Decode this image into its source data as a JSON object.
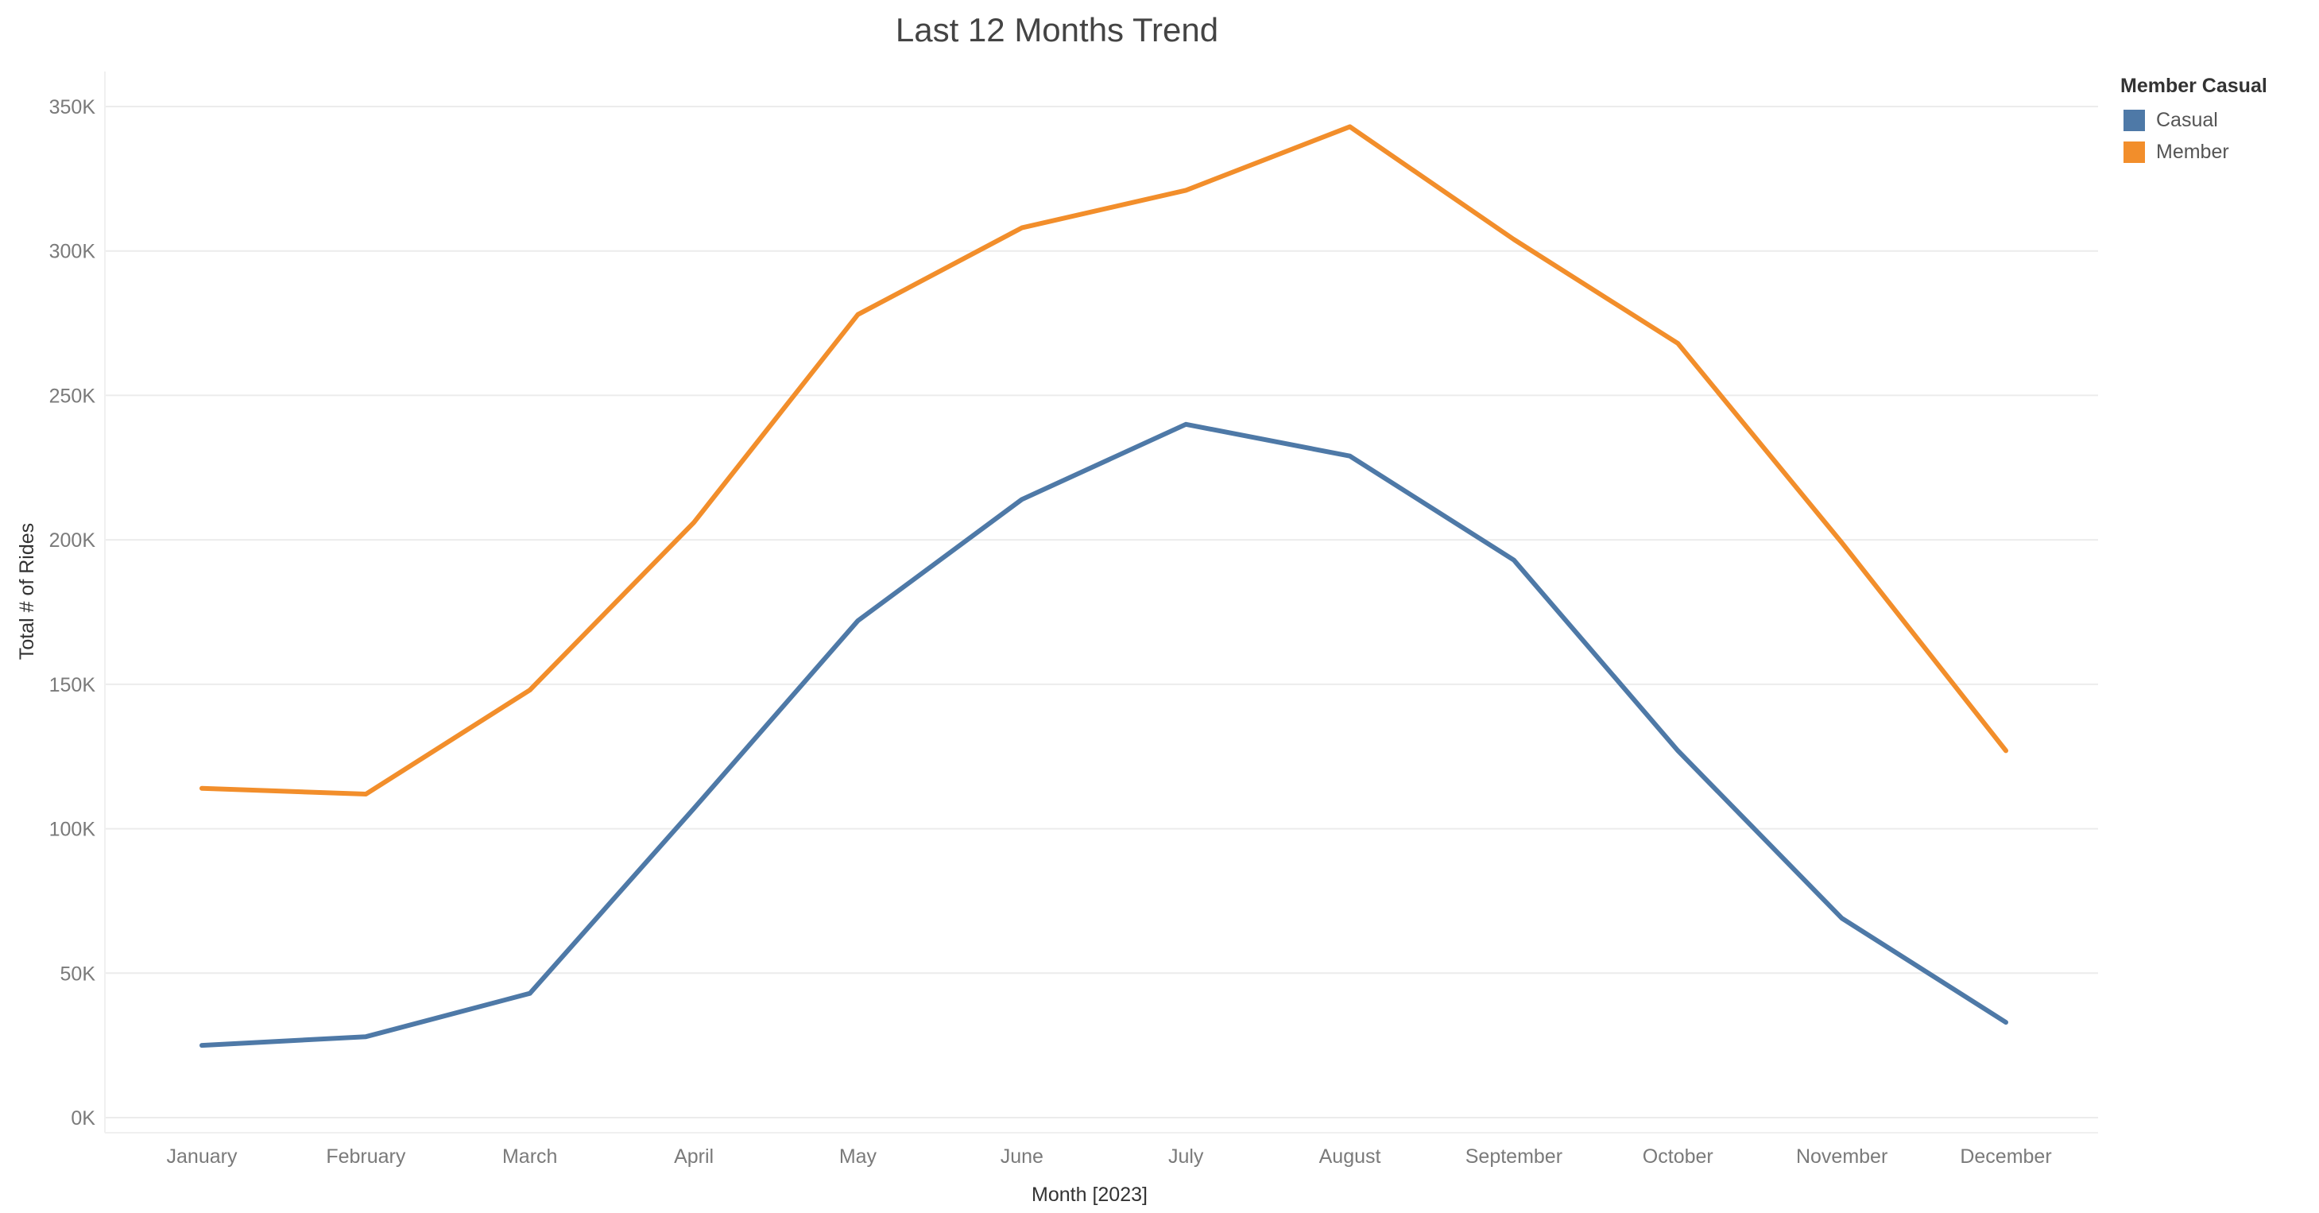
{
  "chart_data": {
    "type": "line",
    "title": "Last 12 Months Trend",
    "xlabel": "Month [2023]",
    "ylabel": "Total # of Rides",
    "categories": [
      "January",
      "February",
      "March",
      "April",
      "May",
      "June",
      "July",
      "August",
      "September",
      "October",
      "November",
      "December"
    ],
    "ylim": [
      0,
      350000
    ],
    "yticks": [
      0,
      50000,
      100000,
      150000,
      200000,
      250000,
      300000,
      350000
    ],
    "ytick_labels": [
      "0K",
      "50K",
      "100K",
      "150K",
      "200K",
      "250K",
      "300K",
      "350K"
    ],
    "grid": true,
    "legend": {
      "title": "Member Casual",
      "placement": "top-right",
      "entries": [
        "Casual",
        "Member"
      ]
    },
    "series": [
      {
        "name": "Casual",
        "color": "#4e79a7",
        "values": [
          25000,
          28000,
          43000,
          107000,
          172000,
          214000,
          240000,
          229000,
          193000,
          127000,
          69000,
          33000
        ]
      },
      {
        "name": "Member",
        "color": "#f28e2b",
        "values": [
          114000,
          112000,
          148000,
          206000,
          278000,
          308000,
          321000,
          343000,
          304000,
          268000,
          199000,
          127000
        ]
      }
    ]
  }
}
